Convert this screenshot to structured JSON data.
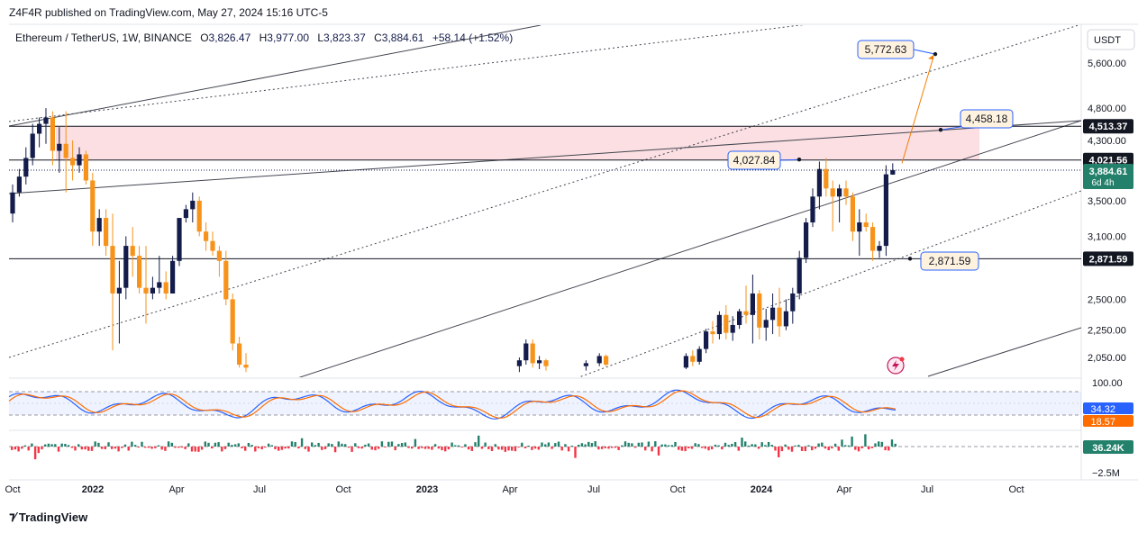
{
  "header": {
    "publisher": "Z4F4R published on TradingView.com, May 27, 2024 15:16 UTC-5"
  },
  "footer": {
    "logo_text": "TradingView"
  },
  "chart_data": {
    "type": "candlestick",
    "symbol_line": "Ethereum / TetherUS, 1W, BINANCE",
    "ohlc": {
      "open_label": "O",
      "open": "3,826.47",
      "high_label": "H",
      "high": "3,977.00",
      "low_label": "L",
      "low": "3,823.37",
      "close_label": "C",
      "close": "3,884.61",
      "change": "+58.14 (+1.52%)"
    },
    "currency": "USDT",
    "y_scale": "log",
    "y_ticks": [
      "5,600.00",
      "4,800.00",
      "4,300.00",
      "3,500.00",
      "3,100.00",
      "2,500.00",
      "2,250.00",
      "2,050.00"
    ],
    "x_ticks": [
      "Oct",
      "2022",
      "Apr",
      "Jul",
      "Oct",
      "2023",
      "Apr",
      "Jul",
      "Oct",
      "2024",
      "Apr",
      "Jul",
      "Oct"
    ],
    "horizontal_levels": [
      {
        "label": "4,513.37",
        "value": 4513.37
      },
      {
        "label": "4,021.56",
        "value": 4021.56
      },
      {
        "label": "2,871.59",
        "value": 2871.59
      }
    ],
    "price_badge": {
      "price": "3,884.61",
      "countdown": "6d 4h"
    },
    "resistance_zone": {
      "low": 4021.56,
      "high": 4513.37
    },
    "annotations": [
      {
        "text": "5,772.63",
        "value": 5772.63
      },
      {
        "text": "4,458.18",
        "value": 4458.18
      },
      {
        "text": "4,027.84",
        "value": 4027.84
      },
      {
        "text": "2,871.59",
        "value": 2871.59
      }
    ],
    "candles": [
      {
        "t": 0,
        "o": 3350,
        "h": 3700,
        "l": 3250,
        "c": 3600
      },
      {
        "t": 1,
        "o": 3600,
        "h": 3900,
        "l": 3550,
        "c": 3800
      },
      {
        "t": 2,
        "o": 3800,
        "h": 4200,
        "l": 3700,
        "c": 4050
      },
      {
        "t": 3,
        "o": 4050,
        "h": 4550,
        "l": 3950,
        "c": 4400
      },
      {
        "t": 4,
        "o": 4400,
        "h": 4650,
        "l": 4200,
        "c": 4550
      },
      {
        "t": 5,
        "o": 4550,
        "h": 4800,
        "l": 4250,
        "c": 4650
      },
      {
        "t": 6,
        "o": 4650,
        "h": 4750,
        "l": 3950,
        "c": 4150
      },
      {
        "t": 7,
        "o": 4150,
        "h": 4500,
        "l": 3850,
        "c": 4250
      },
      {
        "t": 8,
        "o": 4250,
        "h": 4750,
        "l": 3600,
        "c": 4050
      },
      {
        "t": 9,
        "o": 4050,
        "h": 4300,
        "l": 3750,
        "c": 3950
      },
      {
        "t": 10,
        "o": 3950,
        "h": 4200,
        "l": 3850,
        "c": 4100
      },
      {
        "t": 11,
        "o": 4100,
        "h": 4150,
        "l": 3700,
        "c": 3750
      },
      {
        "t": 12,
        "o": 3750,
        "h": 3850,
        "l": 3000,
        "c": 3150
      },
      {
        "t": 13,
        "o": 3150,
        "h": 3400,
        "l": 3000,
        "c": 3300
      },
      {
        "t": 14,
        "o": 3300,
        "h": 3400,
        "l": 2900,
        "c": 3000
      },
      {
        "t": 15,
        "o": 3000,
        "h": 3350,
        "l": 2100,
        "c": 2550
      },
      {
        "t": 16,
        "o": 2550,
        "h": 2850,
        "l": 2150,
        "c": 2600
      },
      {
        "t": 17,
        "o": 2600,
        "h": 3100,
        "l": 2500,
        "c": 3000
      },
      {
        "t": 18,
        "o": 3000,
        "h": 3200,
        "l": 2700,
        "c": 2900
      },
      {
        "t": 19,
        "o": 2900,
        "h": 3000,
        "l": 2550,
        "c": 2600
      },
      {
        "t": 20,
        "o": 2600,
        "h": 3000,
        "l": 2300,
        "c": 2550
      },
      {
        "t": 21,
        "o": 2550,
        "h": 2700,
        "l": 2500,
        "c": 2600
      },
      {
        "t": 22,
        "o": 2600,
        "h": 2900,
        "l": 2550,
        "c": 2650
      },
      {
        "t": 23,
        "o": 2650,
        "h": 2750,
        "l": 2500,
        "c": 2550
      },
      {
        "t": 24,
        "o": 2550,
        "h": 2900,
        "l": 2550,
        "c": 2850
      },
      {
        "t": 25,
        "o": 2850,
        "h": 3300,
        "l": 2800,
        "c": 3300
      },
      {
        "t": 26,
        "o": 3300,
        "h": 3450,
        "l": 3250,
        "c": 3400
      },
      {
        "t": 27,
        "o": 3400,
        "h": 3600,
        "l": 3250,
        "c": 3500
      },
      {
        "t": 28,
        "o": 3500,
        "h": 3550,
        "l": 3100,
        "c": 3150
      },
      {
        "t": 29,
        "o": 3150,
        "h": 3250,
        "l": 2950,
        "c": 3050
      },
      {
        "t": 30,
        "o": 3050,
        "h": 3150,
        "l": 2900,
        "c": 2950
      },
      {
        "t": 31,
        "o": 2950,
        "h": 3000,
        "l": 2700,
        "c": 2850
      },
      {
        "t": 32,
        "o": 2850,
        "h": 2950,
        "l": 2450,
        "c": 2500
      },
      {
        "t": 33,
        "o": 2500,
        "h": 2550,
        "l": 2100,
        "c": 2150
      },
      {
        "t": 34,
        "o": 2150,
        "h": 2200,
        "l": 1980,
        "c": 2000
      },
      {
        "t": 35,
        "o": 2000,
        "h": 2080,
        "l": 1950,
        "c": 1980
      }
    ],
    "candles_2023": [
      {
        "t": 76,
        "o": 1990,
        "h": 2050,
        "l": 1950,
        "c": 2030
      },
      {
        "t": 77,
        "o": 2030,
        "h": 2180,
        "l": 2000,
        "c": 2150
      },
      {
        "t": 78,
        "o": 2150,
        "h": 2180,
        "l": 1980,
        "c": 2010
      },
      {
        "t": 79,
        "o": 2010,
        "h": 2060,
        "l": 1970,
        "c": 2030
      },
      {
        "t": 80,
        "o": 2030,
        "h": 2040,
        "l": 1960,
        "c": 1990
      },
      {
        "t": 86,
        "o": 1990,
        "h": 2030,
        "l": 1960,
        "c": 2010
      },
      {
        "t": 88,
        "o": 2010,
        "h": 2080,
        "l": 1990,
        "c": 2060
      },
      {
        "t": 89,
        "o": 2060,
        "h": 2070,
        "l": 1990,
        "c": 2000
      }
    ],
    "candles_2024": [
      {
        "t": 101,
        "o": 1980,
        "h": 2080,
        "l": 1970,
        "c": 2060
      },
      {
        "t": 102,
        "o": 2060,
        "h": 2100,
        "l": 1990,
        "c": 2020
      },
      {
        "t": 103,
        "o": 2020,
        "h": 2130,
        "l": 2000,
        "c": 2110
      },
      {
        "t": 104,
        "o": 2110,
        "h": 2260,
        "l": 2080,
        "c": 2240
      },
      {
        "t": 105,
        "o": 2240,
        "h": 2320,
        "l": 2150,
        "c": 2220
      },
      {
        "t": 106,
        "o": 2220,
        "h": 2400,
        "l": 2180,
        "c": 2370
      },
      {
        "t": 107,
        "o": 2370,
        "h": 2450,
        "l": 2180,
        "c": 2230
      },
      {
        "t": 108,
        "o": 2230,
        "h": 2360,
        "l": 2170,
        "c": 2290
      },
      {
        "t": 109,
        "o": 2290,
        "h": 2420,
        "l": 2260,
        "c": 2400
      },
      {
        "t": 110,
        "o": 2400,
        "h": 2620,
        "l": 2300,
        "c": 2370
      },
      {
        "t": 111,
        "o": 2370,
        "h": 2720,
        "l": 2150,
        "c": 2550
      },
      {
        "t": 112,
        "o": 2550,
        "h": 2580,
        "l": 2180,
        "c": 2270
      },
      {
        "t": 113,
        "o": 2270,
        "h": 2420,
        "l": 2170,
        "c": 2330
      },
      {
        "t": 114,
        "o": 2330,
        "h": 2550,
        "l": 2220,
        "c": 2430
      },
      {
        "t": 115,
        "o": 2430,
        "h": 2600,
        "l": 2200,
        "c": 2280
      },
      {
        "t": 116,
        "o": 2280,
        "h": 2500,
        "l": 2250,
        "c": 2400
      },
      {
        "t": 117,
        "o": 2400,
        "h": 2600,
        "l": 2300,
        "c": 2550
      },
      {
        "t": 118,
        "o": 2550,
        "h": 2950,
        "l": 2500,
        "c": 2880
      },
      {
        "t": 119,
        "o": 2880,
        "h": 3300,
        "l": 2830,
        "c": 3250
      },
      {
        "t": 120,
        "o": 3250,
        "h": 3650,
        "l": 3200,
        "c": 3550
      },
      {
        "t": 121,
        "o": 3550,
        "h": 4000,
        "l": 3400,
        "c": 3900
      },
      {
        "t": 122,
        "o": 3900,
        "h": 4050,
        "l": 3550,
        "c": 3650
      },
      {
        "t": 123,
        "o": 3650,
        "h": 3750,
        "l": 3150,
        "c": 3550
      },
      {
        "t": 124,
        "o": 3550,
        "h": 3700,
        "l": 3250,
        "c": 3650
      },
      {
        "t": 125,
        "o": 3650,
        "h": 3750,
        "l": 3450,
        "c": 3550
      },
      {
        "t": 126,
        "o": 3550,
        "h": 3600,
        "l": 3050,
        "c": 3150
      },
      {
        "t": 127,
        "o": 3150,
        "h": 3400,
        "l": 2900,
        "c": 3250
      },
      {
        "t": 128,
        "o": 3250,
        "h": 3350,
        "l": 3150,
        "c": 3200
      },
      {
        "t": 129,
        "o": 3200,
        "h": 3250,
        "l": 2850,
        "c": 2950
      },
      {
        "t": 130,
        "o": 2950,
        "h": 3050,
        "l": 2880,
        "c": 3000
      },
      {
        "t": 131,
        "o": 3000,
        "h": 3950,
        "l": 2900,
        "c": 3830
      },
      {
        "t": 132,
        "o": 3826.47,
        "h": 3977,
        "l": 3823.37,
        "c": 3884.61
      }
    ],
    "stoch": {
      "scale_labels": [
        "100.00"
      ],
      "k_value": "34.32",
      "d_value": "18.57",
      "k_color": "#2962ff",
      "d_color": "#ff6d00"
    },
    "volume_delta": {
      "last_value": "36.24K",
      "scale_label": "−2.5M"
    },
    "colors": {
      "up": "#131c4a",
      "down": "#f7931a",
      "zone": "#f9d4d8",
      "badge_dark": "#131722",
      "badge_green": "#22806b",
      "badge_red": "#f23645",
      "accent_blue": "#2962ff",
      "annotation_bg": "#fff3e0"
    }
  }
}
